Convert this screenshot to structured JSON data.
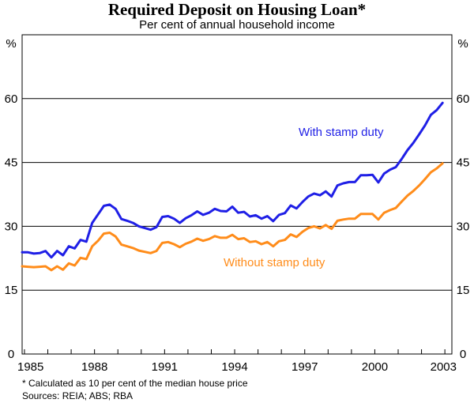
{
  "chart_data": {
    "type": "line",
    "title": "Required Deposit on Housing Loan*",
    "subtitle": "Per cent of annual household income",
    "ylabel_left": "%",
    "ylabel_right": "%",
    "ylim": [
      0,
      75
    ],
    "yticks": [
      "0",
      "15",
      "30",
      "45",
      "60"
    ],
    "xlim": [
      1984.9,
      2003.3
    ],
    "xticks": [
      "1985",
      "1988",
      "1991",
      "1994",
      "1997",
      "2000",
      "2003"
    ],
    "grid": true,
    "series": [
      {
        "name": "With stamp duty",
        "color": "#1f1fe6",
        "x": [
          1984.9,
          1985.15,
          1985.4,
          1985.65,
          1985.9,
          1986.15,
          1986.4,
          1986.65,
          1986.9,
          1987.15,
          1987.4,
          1987.65,
          1987.9,
          1988.15,
          1988.4,
          1988.65,
          1988.9,
          1989.15,
          1989.4,
          1989.65,
          1989.9,
          1990.15,
          1990.4,
          1990.65,
          1990.9,
          1991.15,
          1991.4,
          1991.65,
          1991.9,
          1992.15,
          1992.4,
          1992.65,
          1992.9,
          1993.15,
          1993.4,
          1993.65,
          1993.9,
          1994.15,
          1994.4,
          1994.65,
          1994.9,
          1995.15,
          1995.4,
          1995.65,
          1995.9,
          1996.15,
          1996.4,
          1996.65,
          1996.9,
          1997.15,
          1997.4,
          1997.65,
          1997.9,
          1998.15,
          1998.4,
          1998.65,
          1998.9,
          1999.15,
          1999.4,
          1999.65,
          1999.9,
          2000.15,
          2000.4,
          2000.65,
          2000.9,
          2001.15,
          2001.4,
          2001.65,
          2001.9,
          2002.15,
          2002.4,
          2002.65,
          2002.9
        ],
        "values": [
          23.9,
          23.9,
          23.6,
          23.7,
          24.2,
          22.7,
          24.2,
          23.2,
          25.3,
          24.8,
          26.8,
          26.4,
          30.8,
          32.8,
          34.8,
          35.1,
          34.1,
          31.7,
          31.3,
          30.8,
          30.0,
          29.6,
          29.2,
          29.8,
          32.2,
          32.4,
          31.8,
          30.8,
          31.9,
          32.6,
          33.5,
          32.7,
          33.2,
          34.1,
          33.6,
          33.5,
          34.6,
          33.2,
          33.4,
          32.3,
          32.6,
          31.8,
          32.4,
          31.2,
          32.7,
          33.1,
          34.9,
          34.2,
          35.7,
          37.0,
          37.7,
          37.3,
          38.2,
          37.0,
          39.6,
          40.1,
          40.4,
          40.4,
          42.0,
          42.0,
          42.1,
          40.3,
          42.4,
          43.3,
          43.9,
          45.8,
          47.9,
          49.6,
          51.6,
          53.7,
          56.2,
          57.3,
          59.0
        ]
      },
      {
        "name": "Without stamp duty",
        "color": "#ff8c1a",
        "x": [
          1984.9,
          1985.15,
          1985.4,
          1985.65,
          1985.9,
          1986.15,
          1986.4,
          1986.65,
          1986.9,
          1987.15,
          1987.4,
          1987.65,
          1987.9,
          1988.15,
          1988.4,
          1988.65,
          1988.9,
          1989.15,
          1989.4,
          1989.65,
          1989.9,
          1990.15,
          1990.4,
          1990.65,
          1990.9,
          1991.15,
          1991.4,
          1991.65,
          1991.9,
          1992.15,
          1992.4,
          1992.65,
          1992.9,
          1993.15,
          1993.4,
          1993.65,
          1993.9,
          1994.15,
          1994.4,
          1994.65,
          1994.9,
          1995.15,
          1995.4,
          1995.65,
          1995.9,
          1996.15,
          1996.4,
          1996.65,
          1996.9,
          1997.15,
          1997.4,
          1997.65,
          1997.9,
          1998.15,
          1998.4,
          1998.65,
          1998.9,
          1999.15,
          1999.4,
          1999.65,
          1999.9,
          2000.15,
          2000.4,
          2000.65,
          2000.9,
          2001.15,
          2001.4,
          2001.65,
          2001.9,
          2002.15,
          2002.4,
          2002.65,
          2002.9
        ],
        "values": [
          20.6,
          20.5,
          20.4,
          20.5,
          20.6,
          19.7,
          20.6,
          19.8,
          21.3,
          20.8,
          22.6,
          22.3,
          25.3,
          26.6,
          28.3,
          28.5,
          27.6,
          25.7,
          25.3,
          24.9,
          24.3,
          24.0,
          23.7,
          24.2,
          26.1,
          26.3,
          25.8,
          25.1,
          25.9,
          26.4,
          27.1,
          26.6,
          27.0,
          27.7,
          27.3,
          27.3,
          28.0,
          27.0,
          27.2,
          26.3,
          26.5,
          25.8,
          26.3,
          25.3,
          26.5,
          26.8,
          28.1,
          27.5,
          28.7,
          29.6,
          30.0,
          29.5,
          30.3,
          29.4,
          31.3,
          31.6,
          31.8,
          31.8,
          32.9,
          32.9,
          32.9,
          31.6,
          33.2,
          33.8,
          34.3,
          35.8,
          37.2,
          38.3,
          39.6,
          41.1,
          42.7,
          43.6,
          44.8
        ]
      }
    ],
    "annotations": [
      "With stamp duty",
      "Without stamp duty"
    ]
  },
  "footnotes": {
    "note": "*  Calculated as 10 per cent of the median house price",
    "sources": "Sources: REIA; ABS; RBA"
  }
}
